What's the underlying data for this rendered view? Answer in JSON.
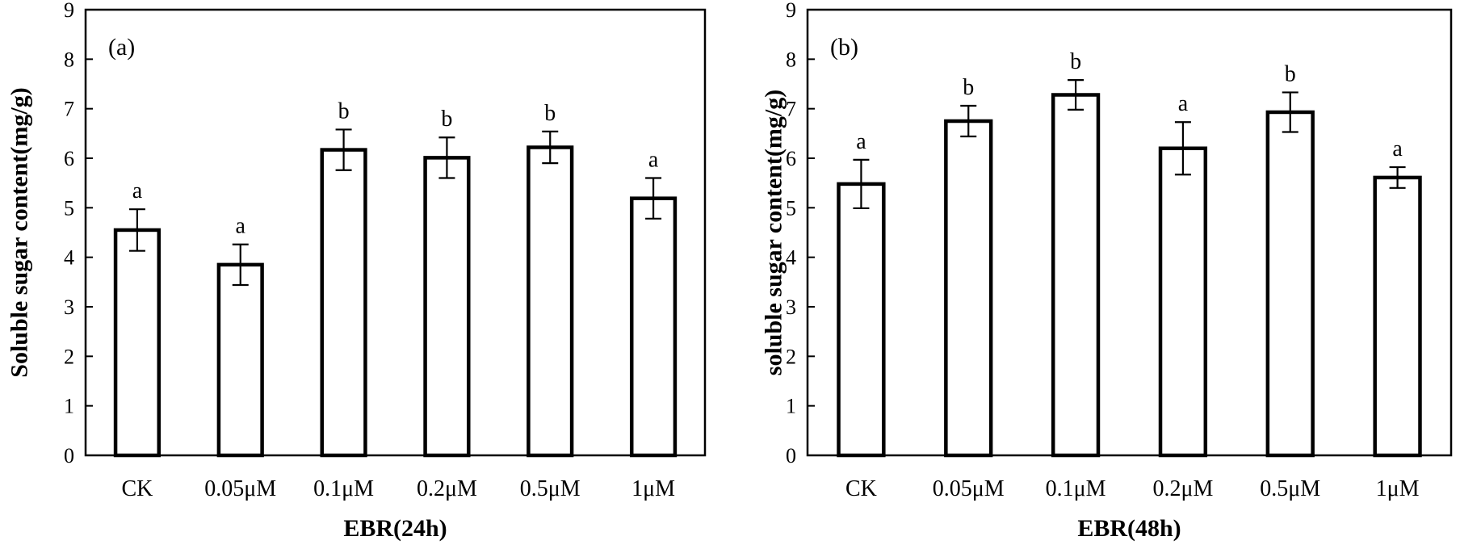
{
  "chart_data": [
    {
      "type": "bar",
      "panel_label": "(a)",
      "title": "",
      "xlabel": "EBR(24h)",
      "ylabel": "Soluble sugar content(mg/g)",
      "ylim": [
        0,
        9
      ],
      "yticks": [
        "0",
        "1",
        "2",
        "3",
        "4",
        "5",
        "6",
        "7",
        "8",
        "9"
      ],
      "categories": [
        "CK",
        "0.05μM",
        "0.1μM",
        "0.2μM",
        "0.5μM",
        "1μM"
      ],
      "values": [
        4.55,
        3.85,
        6.17,
        6.01,
        6.22,
        5.19
      ],
      "errors": [
        0.42,
        0.41,
        0.41,
        0.41,
        0.32,
        0.41
      ],
      "significance": [
        "a",
        "a",
        "b",
        "b",
        "b",
        "a"
      ],
      "grid": false
    },
    {
      "type": "bar",
      "panel_label": "(b)",
      "title": "",
      "xlabel": "EBR(48h)",
      "ylabel": "soluble sugar content(mg/g)",
      "ylim": [
        0,
        9
      ],
      "yticks": [
        "0",
        "1",
        "2",
        "3",
        "4",
        "5",
        "6",
        "7",
        "8",
        "9"
      ],
      "categories": [
        "CK",
        "0.05μM",
        "0.1μM",
        "0.2μM",
        "0.5μM",
        "1μM"
      ],
      "values": [
        5.48,
        6.75,
        7.28,
        6.2,
        6.93,
        5.61
      ],
      "errors": [
        0.49,
        0.31,
        0.3,
        0.53,
        0.4,
        0.21
      ],
      "significance": [
        "a",
        "b",
        "b",
        "a",
        "b",
        "a"
      ],
      "grid": false
    }
  ]
}
